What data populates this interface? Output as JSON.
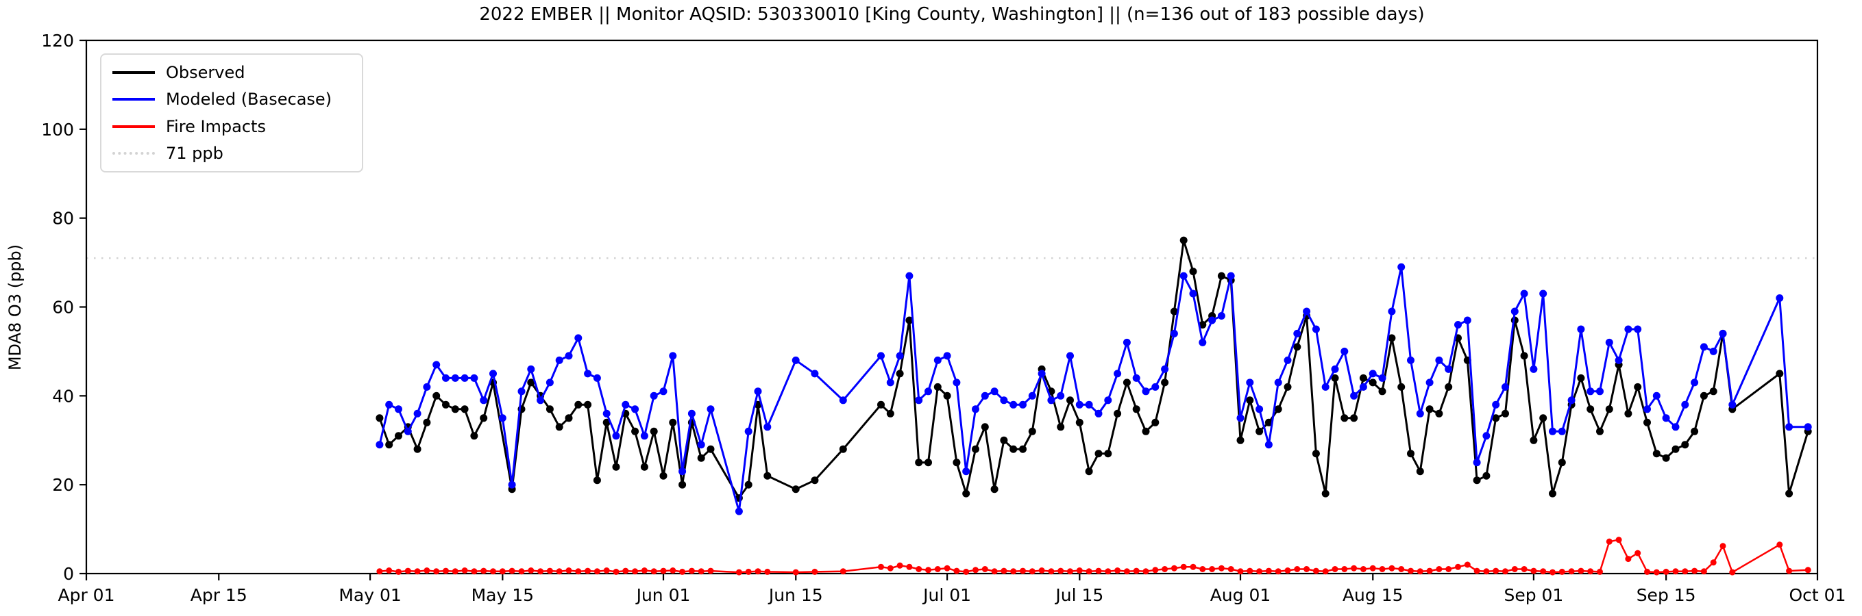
{
  "title": "2022 EMBER || Monitor AQSID: 530330010 [King County, Washington] || (n=136 out of 183 possible days)",
  "chart_data": {
    "type": "line",
    "title": "2022 EMBER || Monitor AQSID: 530330010 [King County, Washington] || (n=136 out of 183 possible days)",
    "xlabel": "",
    "ylabel": "MDA8 O3 (ppb)",
    "ylim": [
      0,
      120
    ],
    "yticks": [
      0,
      20,
      40,
      60,
      80,
      100,
      120
    ],
    "x_domain_days": 183,
    "x_start_label": "Apr 01",
    "xticks": [
      {
        "day": 0,
        "label": "Apr 01"
      },
      {
        "day": 14,
        "label": "Apr 15"
      },
      {
        "day": 30,
        "label": "May 01"
      },
      {
        "day": 44,
        "label": "May 15"
      },
      {
        "day": 61,
        "label": "Jun 01"
      },
      {
        "day": 75,
        "label": "Jun 15"
      },
      {
        "day": 91,
        "label": "Jul 01"
      },
      {
        "day": 105,
        "label": "Jul 15"
      },
      {
        "day": 122,
        "label": "Aug 01"
      },
      {
        "day": 136,
        "label": "Aug 15"
      },
      {
        "day": 153,
        "label": "Sep 01"
      },
      {
        "day": 167,
        "label": "Sep 15"
      },
      {
        "day": 183,
        "label": "Oct 01"
      }
    ],
    "grid": false,
    "legend_position": "upper-left",
    "legend": [
      {
        "label": "Observed",
        "color": "#000000",
        "style": "solid"
      },
      {
        "label": "Modeled (Basecase)",
        "color": "#0000ff",
        "style": "solid"
      },
      {
        "label": "Fire Impacts",
        "color": "#ff0000",
        "style": "solid"
      },
      {
        "label": "71 ppb",
        "color": "#d3d3d3",
        "style": "dotted"
      }
    ],
    "threshold": {
      "value": 71,
      "label": "71 ppb",
      "color": "#d3d3d3"
    },
    "colors": {
      "observed": "#000000",
      "modeled": "#0000ff",
      "fire": "#ff0000"
    },
    "columns": [
      "day_index_from_Apr01",
      "observed_ppb",
      "modeled_ppb",
      "fire_impacts_ppb"
    ],
    "points": [
      [
        31,
        35,
        29,
        0.5
      ],
      [
        32,
        29,
        38,
        0.7
      ],
      [
        33,
        31,
        37,
        0.4
      ],
      [
        34,
        33,
        32,
        0.6
      ],
      [
        35,
        28,
        36,
        0.5
      ],
      [
        36,
        34,
        42,
        0.7
      ],
      [
        37,
        40,
        47,
        0.5
      ],
      [
        38,
        38,
        44,
        0.6
      ],
      [
        39,
        37,
        44,
        0.5
      ],
      [
        40,
        37,
        44,
        0.7
      ],
      [
        41,
        31,
        44,
        0.5
      ],
      [
        42,
        35,
        39,
        0.6
      ],
      [
        43,
        43,
        45,
        0.5
      ],
      [
        44,
        null,
        35,
        0.5
      ],
      [
        45,
        19,
        20,
        0.6
      ],
      [
        46,
        37,
        41,
        0.5
      ],
      [
        47,
        43,
        46,
        0.7
      ],
      [
        48,
        40,
        39,
        0.5
      ],
      [
        49,
        37,
        43,
        0.6
      ],
      [
        50,
        33,
        48,
        0.5
      ],
      [
        51,
        35,
        49,
        0.7
      ],
      [
        52,
        38,
        53,
        0.5
      ],
      [
        53,
        38,
        45,
        0.6
      ],
      [
        54,
        21,
        44,
        0.5
      ],
      [
        55,
        34,
        36,
        0.7
      ],
      [
        56,
        24,
        31,
        0.4
      ],
      [
        57,
        36,
        38,
        0.6
      ],
      [
        58,
        32,
        37,
        0.5
      ],
      [
        59,
        24,
        31,
        0.7
      ],
      [
        60,
        32,
        40,
        0.5
      ],
      [
        61,
        22,
        41,
        0.6
      ],
      [
        62,
        34,
        49,
        0.7
      ],
      [
        63,
        20,
        23,
        0.4
      ],
      [
        64,
        34,
        36,
        0.6
      ],
      [
        65,
        26,
        29,
        0.5
      ],
      [
        66,
        28,
        37,
        0.6
      ],
      [
        69,
        17,
        14,
        0.3
      ],
      [
        70,
        20,
        32,
        0.4
      ],
      [
        71,
        38,
        41,
        0.5
      ],
      [
        72,
        22,
        33,
        0.4
      ],
      [
        75,
        19,
        48,
        0.3
      ],
      [
        77,
        21,
        45,
        0.4
      ],
      [
        80,
        28,
        39,
        0.5
      ],
      [
        84,
        38,
        49,
        1.5
      ],
      [
        85,
        36,
        43,
        1.2
      ],
      [
        86,
        45,
        49,
        1.8
      ],
      [
        87,
        57,
        67,
        1.5
      ],
      [
        88,
        25,
        39,
        1.0
      ],
      [
        89,
        25,
        41,
        0.8
      ],
      [
        90,
        42,
        48,
        1.0
      ],
      [
        91,
        40,
        49,
        1.2
      ],
      [
        92,
        25,
        43,
        0.6
      ],
      [
        93,
        18,
        23,
        0.4
      ],
      [
        94,
        28,
        37,
        0.8
      ],
      [
        95,
        33,
        40,
        1.0
      ],
      [
        96,
        19,
        41,
        0.5
      ],
      [
        97,
        30,
        39,
        0.6
      ],
      [
        98,
        28,
        38,
        0.5
      ],
      [
        99,
        28,
        38,
        0.6
      ],
      [
        100,
        32,
        40,
        0.5
      ],
      [
        101,
        46,
        45,
        0.7
      ],
      [
        102,
        41,
        39,
        0.5
      ],
      [
        103,
        33,
        40,
        0.6
      ],
      [
        104,
        39,
        49,
        0.5
      ],
      [
        105,
        34,
        38,
        0.7
      ],
      [
        106,
        23,
        38,
        0.5
      ],
      [
        107,
        27,
        36,
        0.6
      ],
      [
        108,
        27,
        39,
        0.5
      ],
      [
        109,
        36,
        45,
        0.7
      ],
      [
        110,
        43,
        52,
        0.5
      ],
      [
        111,
        37,
        44,
        0.6
      ],
      [
        112,
        32,
        41,
        0.5
      ],
      [
        113,
        34,
        42,
        0.8
      ],
      [
        114,
        43,
        46,
        1.0
      ],
      [
        115,
        59,
        54,
        1.2
      ],
      [
        116,
        75,
        67,
        1.5
      ],
      [
        117,
        68,
        63,
        1.5
      ],
      [
        118,
        56,
        52,
        1.0
      ],
      [
        119,
        58,
        57,
        1.0
      ],
      [
        120,
        67,
        58,
        1.2
      ],
      [
        121,
        66,
        67,
        1.0
      ],
      [
        122,
        30,
        35,
        0.5
      ],
      [
        123,
        39,
        43,
        0.6
      ],
      [
        124,
        32,
        37,
        0.5
      ],
      [
        125,
        34,
        29,
        0.6
      ],
      [
        126,
        37,
        43,
        0.5
      ],
      [
        127,
        42,
        48,
        0.7
      ],
      [
        128,
        51,
        54,
        1.0
      ],
      [
        129,
        58,
        59,
        1.0
      ],
      [
        130,
        27,
        55,
        0.6
      ],
      [
        131,
        18,
        42,
        0.5
      ],
      [
        132,
        44,
        46,
        1.0
      ],
      [
        133,
        35,
        50,
        1.0
      ],
      [
        134,
        35,
        40,
        1.2
      ],
      [
        135,
        44,
        42,
        1.0
      ],
      [
        136,
        43,
        45,
        1.2
      ],
      [
        137,
        41,
        44,
        1.0
      ],
      [
        138,
        53,
        59,
        1.2
      ],
      [
        139,
        42,
        69,
        1.0
      ],
      [
        140,
        27,
        48,
        0.6
      ],
      [
        141,
        23,
        36,
        0.5
      ],
      [
        142,
        37,
        43,
        0.6
      ],
      [
        143,
        36,
        48,
        1.0
      ],
      [
        144,
        42,
        46,
        1.0
      ],
      [
        145,
        53,
        56,
        1.5
      ],
      [
        146,
        48,
        57,
        2.0
      ],
      [
        147,
        21,
        25,
        0.6
      ],
      [
        148,
        22,
        31,
        0.5
      ],
      [
        149,
        35,
        38,
        0.6
      ],
      [
        150,
        36,
        42,
        0.5
      ],
      [
        151,
        57,
        59,
        1.0
      ],
      [
        152,
        49,
        63,
        1.0
      ],
      [
        153,
        30,
        46,
        0.6
      ],
      [
        154,
        35,
        63,
        0.5
      ],
      [
        155,
        18,
        32,
        0.3
      ],
      [
        156,
        25,
        32,
        0.4
      ],
      [
        157,
        38,
        39,
        0.5
      ],
      [
        158,
        44,
        55,
        0.6
      ],
      [
        159,
        37,
        41,
        0.5
      ],
      [
        160,
        32,
        41,
        0.4
      ],
      [
        161,
        37,
        52,
        7.2
      ],
      [
        162,
        47,
        48,
        7.6
      ],
      [
        163,
        36,
        55,
        3.3
      ],
      [
        164,
        42,
        55,
        4.6
      ],
      [
        165,
        34,
        37,
        0.4
      ],
      [
        166,
        27,
        40,
        0.3
      ],
      [
        167,
        26,
        35,
        0.4
      ],
      [
        168,
        28,
        33,
        0.5
      ],
      [
        169,
        29,
        38,
        0.5
      ],
      [
        170,
        32,
        43,
        0.6
      ],
      [
        171,
        40,
        51,
        0.5
      ],
      [
        172,
        41,
        50,
        2.5
      ],
      [
        173,
        54,
        54,
        6.2
      ],
      [
        174,
        37,
        38,
        0.3
      ],
      [
        179,
        45,
        62,
        6.5
      ],
      [
        180,
        18,
        33,
        0.6
      ],
      [
        182,
        32,
        33,
        0.8
      ]
    ]
  }
}
